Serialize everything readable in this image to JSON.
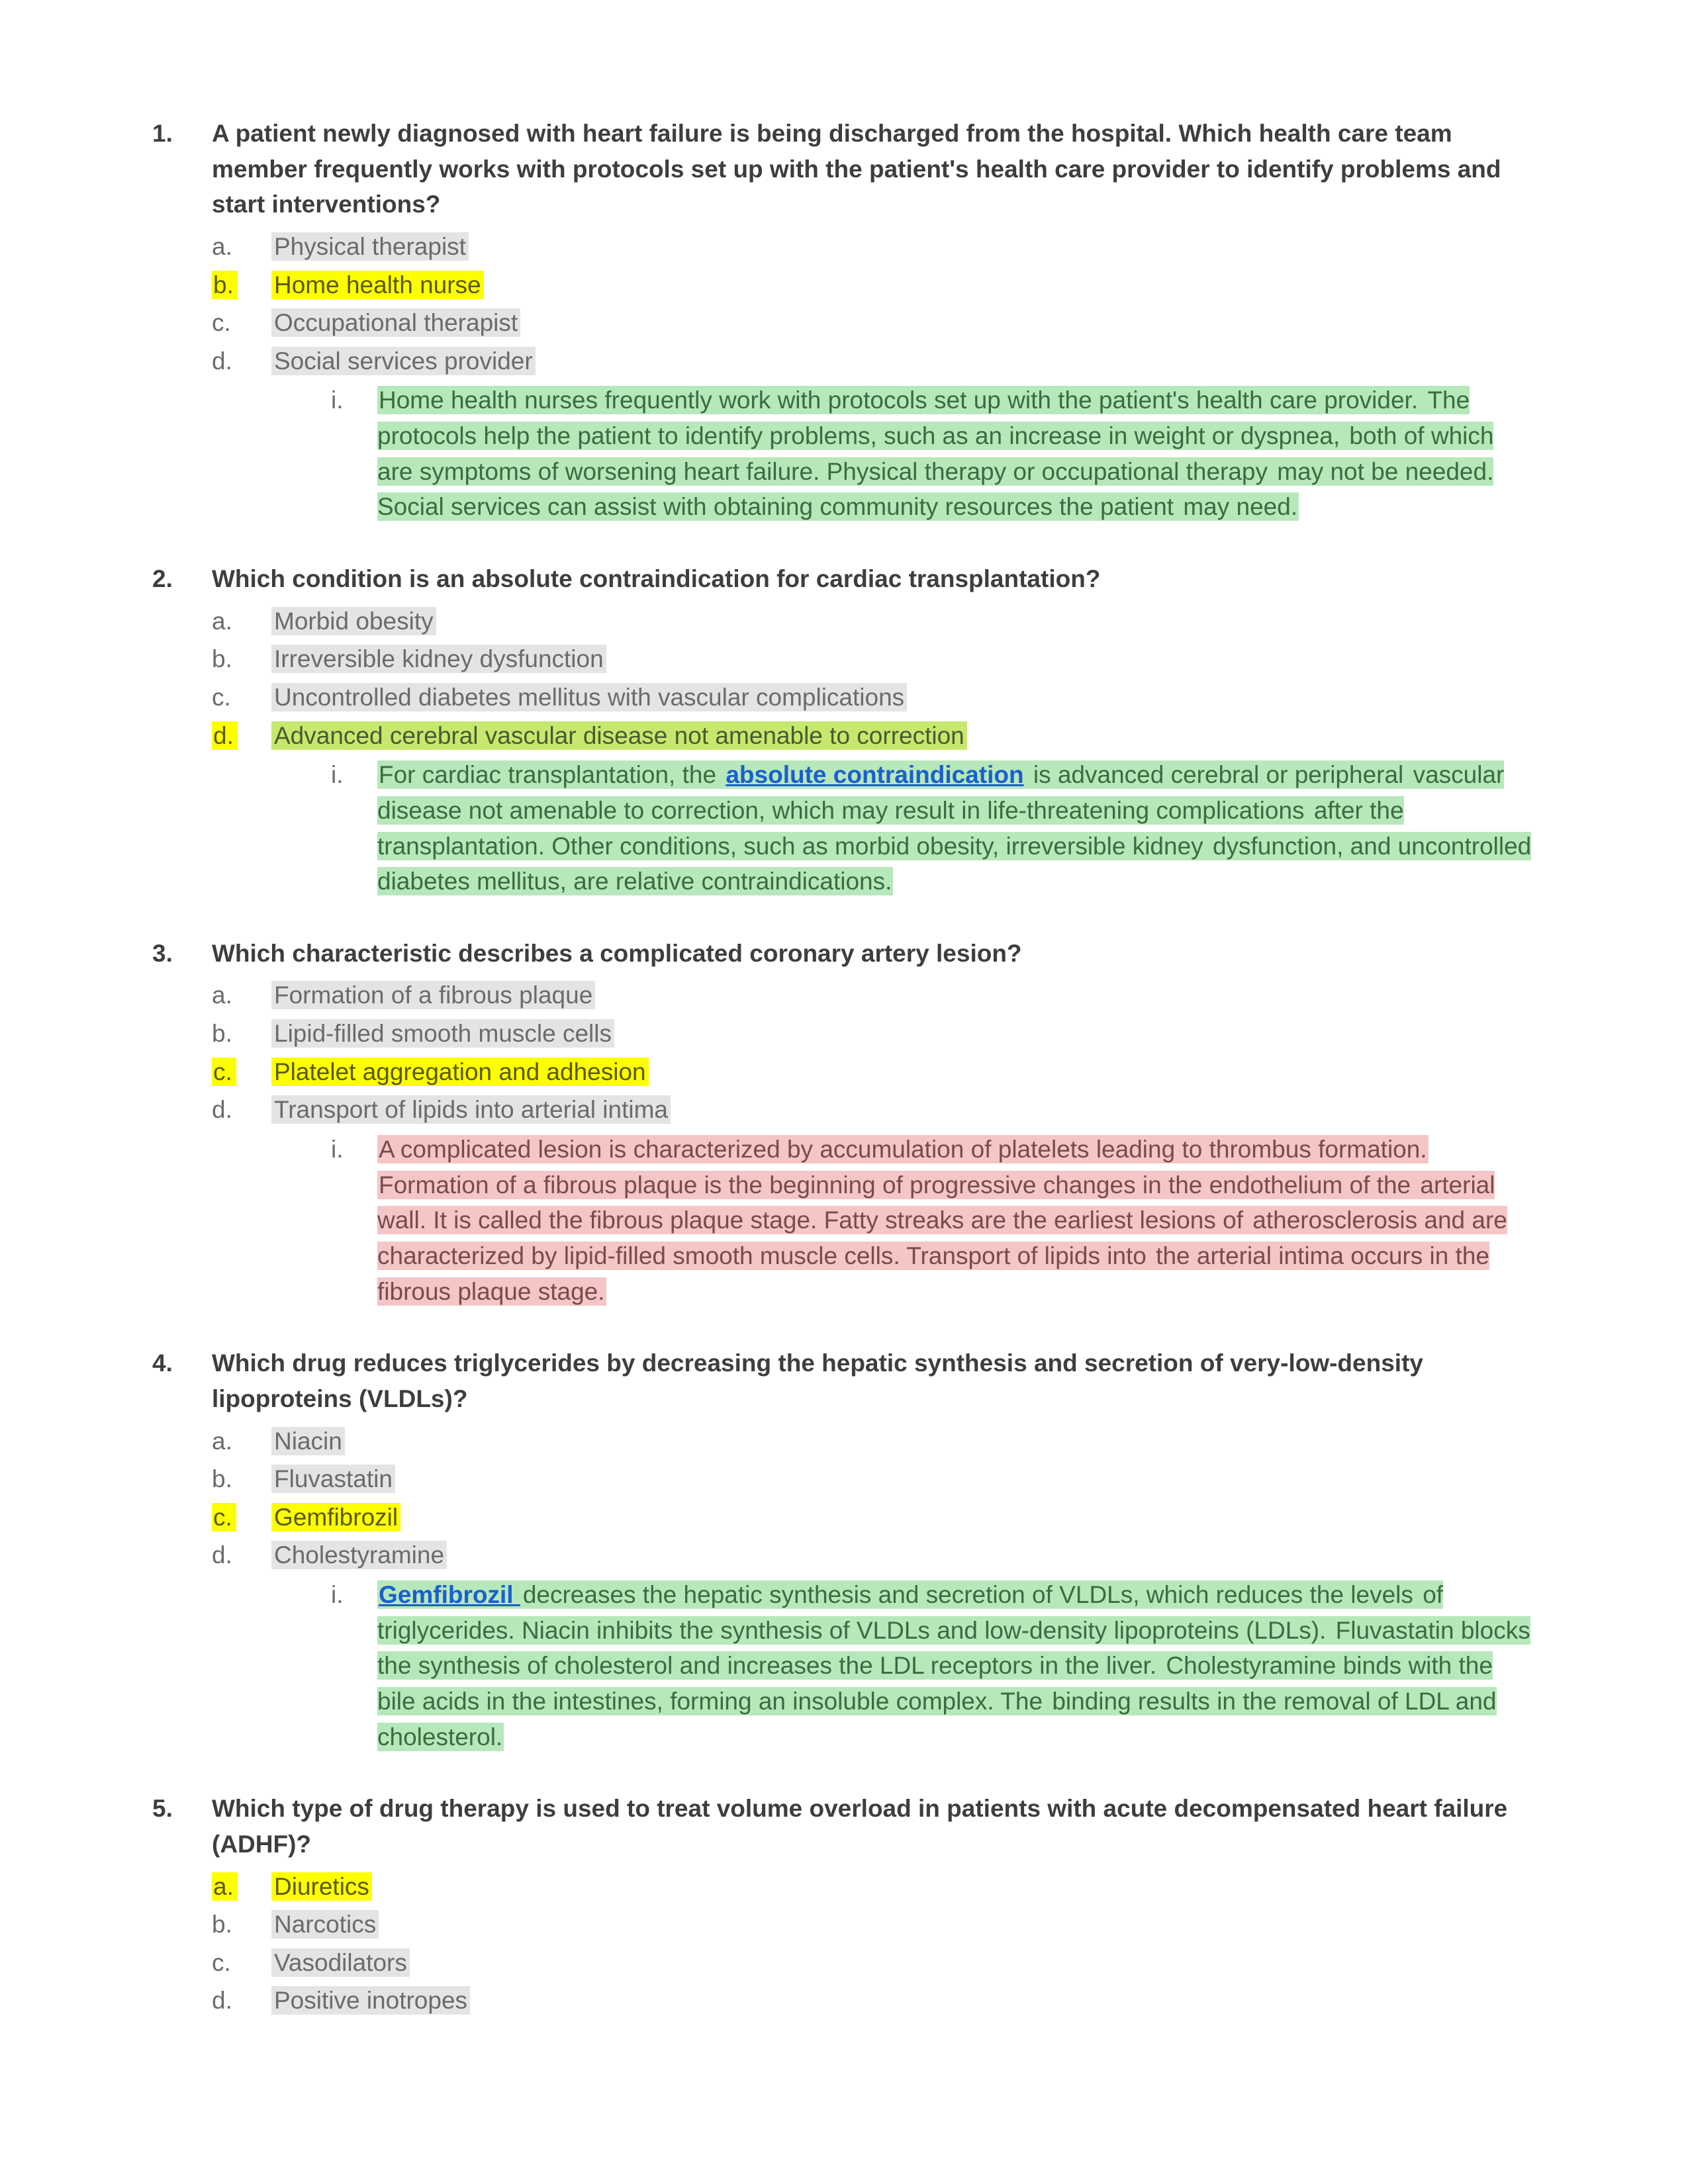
{
  "colors": {
    "page_bg": "#ffffff",
    "body_text": "#3e3e3e",
    "muted_text": "#6b6b6b",
    "highlight_yellow_bg": "#fdff00",
    "highlight_yellow_text": "#5a5a00",
    "highlight_gray_bg": "#e4e4e4",
    "highlight_green_bg": "#b7e8bb",
    "highlight_green_text": "#3b6b40",
    "highlight_pink_bg": "#f4c6c6",
    "highlight_pink_text": "#7a4b4b",
    "highlight_yellowgreen_bg": "#c6e86f",
    "link_color": "#1a5fd0"
  },
  "typography": {
    "body_font": "Arial",
    "body_size_pt": 28,
    "stem_weight": 700,
    "line_height": 1.45
  },
  "questions": [
    {
      "stem": "A patient newly diagnosed with heart failure is being discharged from the hospital. Which health care team member frequently works with protocols set up with the patient's health care provider to identify problems and start interventions?",
      "options": [
        {
          "letter": "a.",
          "text": "Physical therapist",
          "letter_hl": "none",
          "text_hl": "gray"
        },
        {
          "letter": "b.",
          "text": "Home health nurse",
          "letter_hl": "yellow",
          "text_hl": "yellow"
        },
        {
          "letter": "c.",
          "text": "Occupational therapist",
          "letter_hl": "none",
          "text_hl": "gray"
        },
        {
          "letter": "d.",
          "text": "Social services provider",
          "letter_hl": "none",
          "text_hl": "gray"
        }
      ],
      "explanation_hl": "green",
      "explanation_spans": [
        {
          "text": "Home health nurses frequently work with protocols set up with the patient's health care provider. "
        },
        {
          "text": "The protocols help the patient to identify problems, such as an increase in weight or dyspnea, "
        },
        {
          "text": "both of which are symptoms of worsening heart failure. Physical therapy or occupational therapy "
        },
        {
          "text": "may not be needed. Social services can assist with obtaining community resources the patient "
        },
        {
          "text": "may need."
        }
      ]
    },
    {
      "stem": "Which condition is an absolute contraindication for cardiac transplantation?",
      "options": [
        {
          "letter": "a.",
          "text": "Morbid obesity",
          "letter_hl": "none",
          "text_hl": "gray"
        },
        {
          "letter": "b.",
          "text": "Irreversible kidney dysfunction",
          "letter_hl": "none",
          "text_hl": "gray"
        },
        {
          "letter": "c.",
          "text": "Uncontrolled diabetes mellitus with vascular complications",
          "letter_hl": "none",
          "text_hl": "gray"
        },
        {
          "letter": "d.",
          "text": "Advanced cerebral vascular disease not amenable to correction",
          "letter_hl": "yellow",
          "text_hl": "yellowgreen"
        }
      ],
      "explanation_hl": "green",
      "explanation_spans": [
        {
          "text": "For cardiac transplantation, the "
        },
        {
          "text": "absolute contraindication",
          "link": true
        },
        {
          "text": " is advanced cerebral or peripheral "
        },
        {
          "text": "vascular disease not amenable to correction, which may result in life-threatening complications "
        },
        {
          "text": "after the transplantation. Other conditions, such as morbid obesity, irreversible kidney "
        },
        {
          "text": "dysfunction, and uncontrolled diabetes mellitus, are relative contraindications."
        }
      ]
    },
    {
      "stem": "Which characteristic describes a complicated coronary artery lesion?",
      "options": [
        {
          "letter": "a.",
          "text": "Formation of a fibrous plaque",
          "letter_hl": "none",
          "text_hl": "gray"
        },
        {
          "letter": "b.",
          "text": "Lipid-filled smooth muscle cells",
          "letter_hl": "none",
          "text_hl": "gray"
        },
        {
          "letter": "c.",
          "text": "Platelet aggregation and adhesion",
          "letter_hl": "yellow",
          "text_hl": "yellow"
        },
        {
          "letter": "d.",
          "text": "Transport of lipids into arterial intima",
          "letter_hl": "none",
          "text_hl": "gray"
        }
      ],
      "explanation_hl": "pink",
      "explanation_spans": [
        {
          "text": "A complicated lesion is characterized by accumulation of platelets leading to thrombus formation. "
        },
        {
          "text": "Formation of a fibrous plaque is the beginning of progressive changes in the endothelium of the "
        },
        {
          "text": "arterial wall. It is called the fibrous plaque stage. Fatty streaks are the earliest lesions of "
        },
        {
          "text": "atherosclerosis and are characterized by lipid-filled smooth muscle cells. Transport of lipids into "
        },
        {
          "text": "the arterial intima occurs in the fibrous plaque stage."
        }
      ]
    },
    {
      "stem": "Which drug reduces triglycerides by decreasing the hepatic synthesis and secretion of very-low-density lipoproteins (VLDLs)?",
      "options": [
        {
          "letter": "a.",
          "text": "Niacin",
          "letter_hl": "none",
          "text_hl": "gray"
        },
        {
          "letter": "b.",
          "text": "Fluvastatin",
          "letter_hl": "none",
          "text_hl": "gray"
        },
        {
          "letter": "c.",
          "text": "Gemfibrozil",
          "letter_hl": "yellow",
          "text_hl": "yellow"
        },
        {
          "letter": "d.",
          "text": "Cholestyramine",
          "letter_hl": "none",
          "text_hl": "gray"
        }
      ],
      "explanation_hl": "green",
      "explanation_spans": [
        {
          "text": "Gemfibrozil ",
          "link": true
        },
        {
          "text": "decreases the hepatic synthesis and secretion of VLDLs, which reduces the levels "
        },
        {
          "text": "of triglycerides. Niacin inhibits the synthesis of VLDLs and low-density lipoproteins (LDLs). "
        },
        {
          "text": "Fluvastatin blocks the synthesis of cholesterol and increases the LDL receptors in the liver. "
        },
        {
          "text": "Cholestyramine binds with the bile acids in the intestines, forming an insoluble complex. The "
        },
        {
          "text": "binding results in the removal of LDL and cholesterol."
        }
      ]
    },
    {
      "stem": "Which type of drug therapy is used to treat volume overload in patients with acute decompensated heart failure (ADHF)?",
      "options": [
        {
          "letter": "a.",
          "text": "Diuretics",
          "letter_hl": "yellow",
          "text_hl": "yellow"
        },
        {
          "letter": "b.",
          "text": "Narcotics",
          "letter_hl": "none",
          "text_hl": "gray"
        },
        {
          "letter": "c.",
          "text": "Vasodilators",
          "letter_hl": "none",
          "text_hl": "gray"
        },
        {
          "letter": "d.",
          "text": "Positive inotropes",
          "letter_hl": "none",
          "text_hl": "gray"
        }
      ],
      "explanation_hl": "none",
      "explanation_spans": []
    }
  ]
}
